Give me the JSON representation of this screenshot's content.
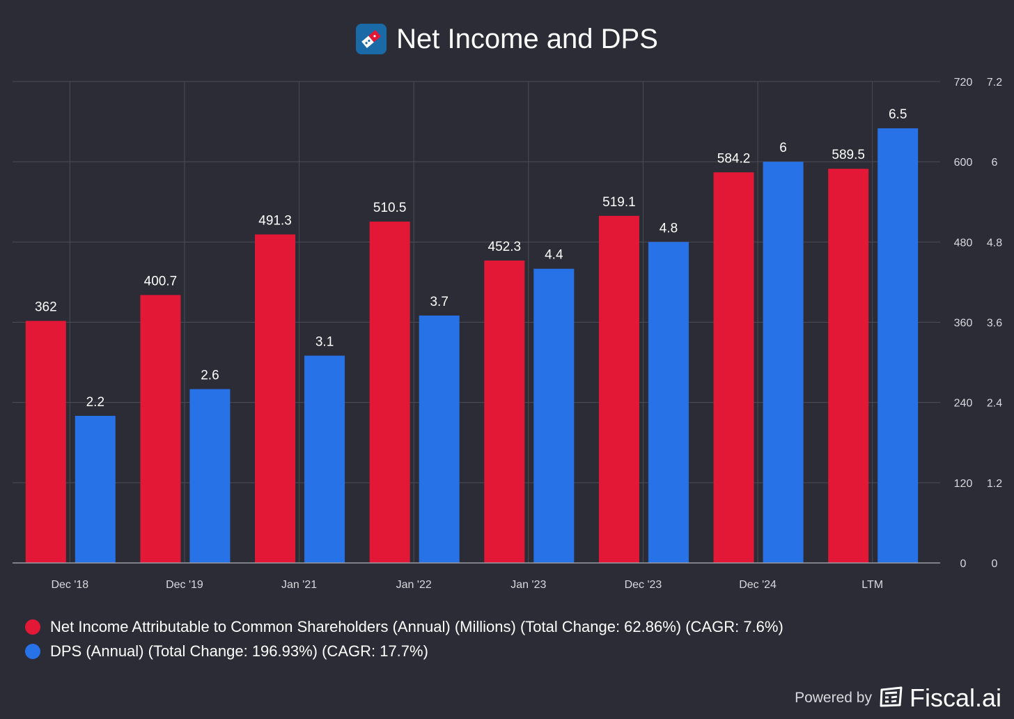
{
  "header": {
    "title": "Net Income and DPS",
    "logo_icon": "dominos-logo-icon"
  },
  "chart_data": {
    "type": "bar",
    "title": "Net Income and DPS",
    "categories": [
      "Dec '18",
      "Dec '19",
      "Jan '21",
      "Jan '22",
      "Jan '23",
      "Dec '23",
      "Dec '24",
      "LTM"
    ],
    "series": [
      {
        "name": "Net Income Attributable to Common Shareholders (Annual) (Millions) (Total Change: 62.86%) (CAGR: 7.6%)",
        "axis": "left",
        "color": "#e31837",
        "values": [
          362,
          400.7,
          491.3,
          510.5,
          452.3,
          519.1,
          584.2,
          589.5
        ],
        "labels": [
          "362",
          "400.7",
          "491.3",
          "510.5",
          "452.3",
          "519.1",
          "584.2",
          "589.5"
        ]
      },
      {
        "name": "DPS (Annual) (Total Change: 196.93%) (CAGR: 17.7%)",
        "axis": "right",
        "color": "#2872e8",
        "values": [
          2.2,
          2.6,
          3.1,
          3.7,
          4.4,
          4.8,
          6,
          null
        ],
        "labels": [
          "2.2",
          "2.6",
          "3.1",
          "3.7",
          "4.4",
          "4.8",
          "6",
          ""
        ]
      }
    ],
    "extra_bars": [
      {
        "category": "LTM",
        "series": "DPS (Annual) (Total Change: 196.93%) (CAGR: 17.7%)",
        "value": 6.5,
        "label": "6.5",
        "color": "#2872e8"
      }
    ],
    "y_axis_left": {
      "ticks": [
        "0",
        "120",
        "240",
        "360",
        "480",
        "600",
        "720"
      ],
      "range": [
        0,
        720
      ]
    },
    "y_axis_right": {
      "ticks": [
        "0",
        "1.2",
        "2.4",
        "3.6",
        "4.8",
        "6",
        "7.2"
      ],
      "range": [
        0,
        7.2
      ]
    },
    "grid": true,
    "legend_position": "bottom-left"
  },
  "footer": {
    "powered_by": "Powered by",
    "brand": "Fiscal.ai",
    "brand_icon": "fiscal-ai-logo-icon"
  }
}
